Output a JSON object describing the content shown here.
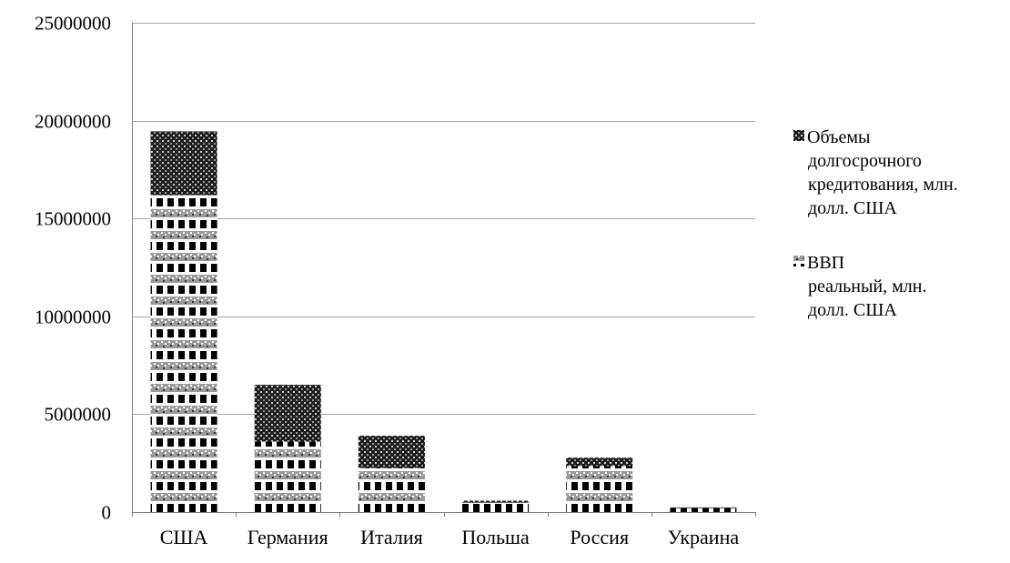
{
  "chart_data": {
    "type": "bar",
    "stacked": true,
    "categories": [
      "США",
      "Германия",
      "Италия",
      "Польша",
      "Россия",
      "Украина"
    ],
    "series": [
      {
        "name": "ВВП реальный, млн. долл. США",
        "values": [
          16200000,
          3600000,
          2250000,
          480000,
          2350000,
          200000
        ],
        "pattern": "checker"
      },
      {
        "name": "Объемы долгосрочного кредитования, млн. долл. США",
        "values": [
          3250000,
          2900000,
          1650000,
          100000,
          430000,
          40000
        ],
        "pattern": "dark-mesh"
      }
    ],
    "title": "",
    "xlabel": "",
    "ylabel": "",
    "ylim": [
      0,
      25000000
    ],
    "yticks": [
      "0",
      "5000000",
      "10000000",
      "15000000",
      "20000000",
      "25000000"
    ],
    "grid": true,
    "legend_position": "right",
    "legend": {
      "entries": [
        {
          "series_index": 1,
          "lines": [
            "Объемы",
            "долгосрочного",
            "кредитования, млн.",
            "долл. США"
          ]
        },
        {
          "series_index": 0,
          "lines": [
            "ВВП",
            "реальный, млн.",
            "долл. США"
          ]
        }
      ]
    },
    "colors": {
      "gridline": "#a6a6a6",
      "axis": "#7f7f7f",
      "dark": "#000000",
      "mid": "#8c8c8c",
      "light": "#ffffff"
    }
  }
}
